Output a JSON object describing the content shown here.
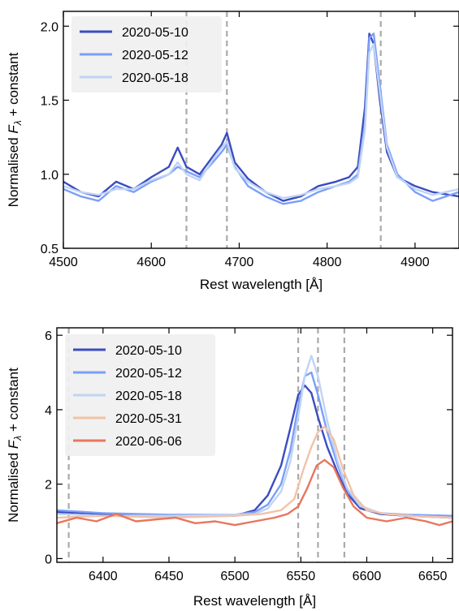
{
  "chart_data": [
    {
      "type": "line",
      "xlabel": "Rest wavelength [Å]",
      "ylabel_main": "Normalised F",
      "ylabel_sub": "λ",
      "ylabel_rest": " + constant",
      "xlim": [
        4500,
        4950
      ],
      "ylim": [
        0.5,
        2.1
      ],
      "xticks": [
        4500,
        4600,
        4700,
        4800,
        4900
      ],
      "yticks": [
        0.5,
        1.0,
        1.5,
        2.0
      ],
      "xtick_labels": [
        "4500",
        "4600",
        "4700",
        "4800",
        "4900"
      ],
      "ytick_labels": [
        "0.5",
        "1.0",
        "1.5",
        "2.0"
      ],
      "vlines": [
        4640,
        4686,
        4861
      ],
      "legend_position": "top-left",
      "series": [
        {
          "name": "2020-05-10",
          "color": "#3b4cc0",
          "x": [
            4500,
            4520,
            4540,
            4560,
            4580,
            4600,
            4620,
            4630,
            4640,
            4655,
            4670,
            4680,
            4686,
            4695,
            4710,
            4730,
            4750,
            4770,
            4790,
            4810,
            4825,
            4835,
            4843,
            4848,
            4853,
            4860,
            4868,
            4880,
            4900,
            4920,
            4950
          ],
          "y": [
            0.95,
            0.88,
            0.85,
            0.95,
            0.9,
            0.98,
            1.05,
            1.18,
            1.05,
            1.0,
            1.12,
            1.2,
            1.28,
            1.08,
            0.97,
            0.88,
            0.82,
            0.85,
            0.92,
            0.95,
            0.98,
            1.05,
            1.45,
            1.95,
            1.88,
            1.5,
            1.15,
            0.98,
            0.92,
            0.88,
            0.85
          ]
        },
        {
          "name": "2020-05-12",
          "color": "#7b9ff9",
          "x": [
            4500,
            4520,
            4540,
            4560,
            4580,
            4600,
            4620,
            4630,
            4640,
            4655,
            4670,
            4680,
            4686,
            4695,
            4710,
            4730,
            4750,
            4770,
            4790,
            4810,
            4825,
            4835,
            4843,
            4848,
            4853,
            4860,
            4868,
            4880,
            4900,
            4920,
            4950
          ],
          "y": [
            0.9,
            0.85,
            0.82,
            0.92,
            0.88,
            0.95,
            1.0,
            1.05,
            1.02,
            0.98,
            1.08,
            1.15,
            1.2,
            1.05,
            0.92,
            0.85,
            0.8,
            0.82,
            0.88,
            0.92,
            0.95,
            1.0,
            1.35,
            1.92,
            1.95,
            1.6,
            1.2,
            1.0,
            0.88,
            0.82,
            0.88
          ]
        },
        {
          "name": "2020-05-18",
          "color": "#c0d4f5",
          "x": [
            4500,
            4520,
            4540,
            4560,
            4580,
            4600,
            4620,
            4630,
            4640,
            4655,
            4670,
            4680,
            4686,
            4695,
            4710,
            4730,
            4750,
            4770,
            4790,
            4810,
            4825,
            4835,
            4843,
            4848,
            4853,
            4860,
            4868,
            4880,
            4900,
            4920,
            4950
          ],
          "y": [
            0.92,
            0.88,
            0.86,
            0.9,
            0.9,
            0.96,
            1.0,
            1.08,
            1.0,
            0.96,
            1.1,
            1.18,
            1.22,
            1.04,
            0.95,
            0.88,
            0.84,
            0.86,
            0.9,
            0.92,
            0.94,
            0.98,
            1.3,
            1.82,
            1.88,
            1.55,
            1.18,
            0.98,
            0.9,
            0.86,
            0.9
          ]
        }
      ]
    },
    {
      "type": "line",
      "xlabel": "Rest wavelength [Å]",
      "ylabel_main": "Normalised F",
      "ylabel_sub": "λ",
      "ylabel_rest": " + constant",
      "xlim": [
        6365,
        6665
      ],
      "ylim": [
        -0.1,
        6.2
      ],
      "xticks": [
        6400,
        6450,
        6500,
        6550,
        6600,
        6650
      ],
      "yticks": [
        0,
        2,
        4,
        6
      ],
      "xtick_labels": [
        "6400",
        "6450",
        "6500",
        "6550",
        "6600",
        "6650"
      ],
      "ytick_labels": [
        "0",
        "2",
        "4",
        "6"
      ],
      "vlines": [
        6374,
        6548,
        6563,
        6583
      ],
      "legend_position": "top-left",
      "series": [
        {
          "name": "2020-05-10",
          "color": "#3b4cc0",
          "x": [
            6365,
            6400,
            6450,
            6500,
            6515,
            6525,
            6535,
            6542,
            6548,
            6553,
            6558,
            6563,
            6570,
            6578,
            6585,
            6595,
            6610,
            6630,
            6665
          ],
          "y": [
            1.25,
            1.2,
            1.15,
            1.15,
            1.3,
            1.7,
            2.5,
            3.5,
            4.4,
            4.65,
            4.45,
            3.8,
            3.0,
            2.3,
            1.75,
            1.35,
            1.2,
            1.15,
            1.1
          ]
        },
        {
          "name": "2020-05-12",
          "color": "#7b9ff9",
          "x": [
            6365,
            6400,
            6450,
            6500,
            6515,
            6525,
            6535,
            6542,
            6548,
            6553,
            6558,
            6563,
            6570,
            6578,
            6585,
            6595,
            6610,
            6630,
            6665
          ],
          "y": [
            1.3,
            1.22,
            1.18,
            1.18,
            1.25,
            1.45,
            2.0,
            2.9,
            4.1,
            4.9,
            5.0,
            4.4,
            3.4,
            2.5,
            1.85,
            1.4,
            1.22,
            1.18,
            1.15
          ]
        },
        {
          "name": "2020-05-18",
          "color": "#c0d4f5",
          "x": [
            6365,
            6400,
            6450,
            6500,
            6515,
            6525,
            6535,
            6542,
            6548,
            6553,
            6558,
            6563,
            6570,
            6578,
            6585,
            6595,
            6610,
            6630,
            6665
          ],
          "y": [
            1.2,
            1.15,
            1.15,
            1.18,
            1.2,
            1.35,
            1.8,
            2.6,
            3.8,
            4.9,
            5.45,
            4.9,
            3.7,
            2.6,
            1.9,
            1.42,
            1.22,
            1.15,
            1.1
          ]
        },
        {
          "name": "2020-05-31",
          "color": "#f2c2a8",
          "x": [
            6365,
            6400,
            6450,
            6500,
            6520,
            6535,
            6545,
            6552,
            6558,
            6563,
            6568,
            6575,
            6582,
            6590,
            6600,
            6615,
            6635,
            6665
          ],
          "y": [
            1.1,
            1.15,
            1.1,
            1.15,
            1.2,
            1.3,
            1.6,
            2.4,
            3.0,
            3.4,
            3.55,
            3.2,
            2.4,
            1.7,
            1.3,
            1.2,
            1.15,
            1.1
          ]
        },
        {
          "name": "2020-06-06",
          "color": "#e7765d",
          "x": [
            6365,
            6380,
            6395,
            6410,
            6425,
            6440,
            6455,
            6470,
            6485,
            6500,
            6515,
            6530,
            6540,
            6548,
            6555,
            6562,
            6568,
            6575,
            6582,
            6590,
            6600,
            6615,
            6630,
            6645,
            6655,
            6665
          ],
          "y": [
            0.95,
            1.1,
            1.0,
            1.2,
            1.0,
            1.05,
            1.1,
            0.95,
            1.0,
            0.9,
            1.0,
            1.1,
            1.2,
            1.4,
            1.9,
            2.5,
            2.65,
            2.45,
            1.9,
            1.4,
            1.1,
            1.0,
            1.1,
            1.0,
            0.9,
            1.0
          ]
        }
      ]
    }
  ]
}
